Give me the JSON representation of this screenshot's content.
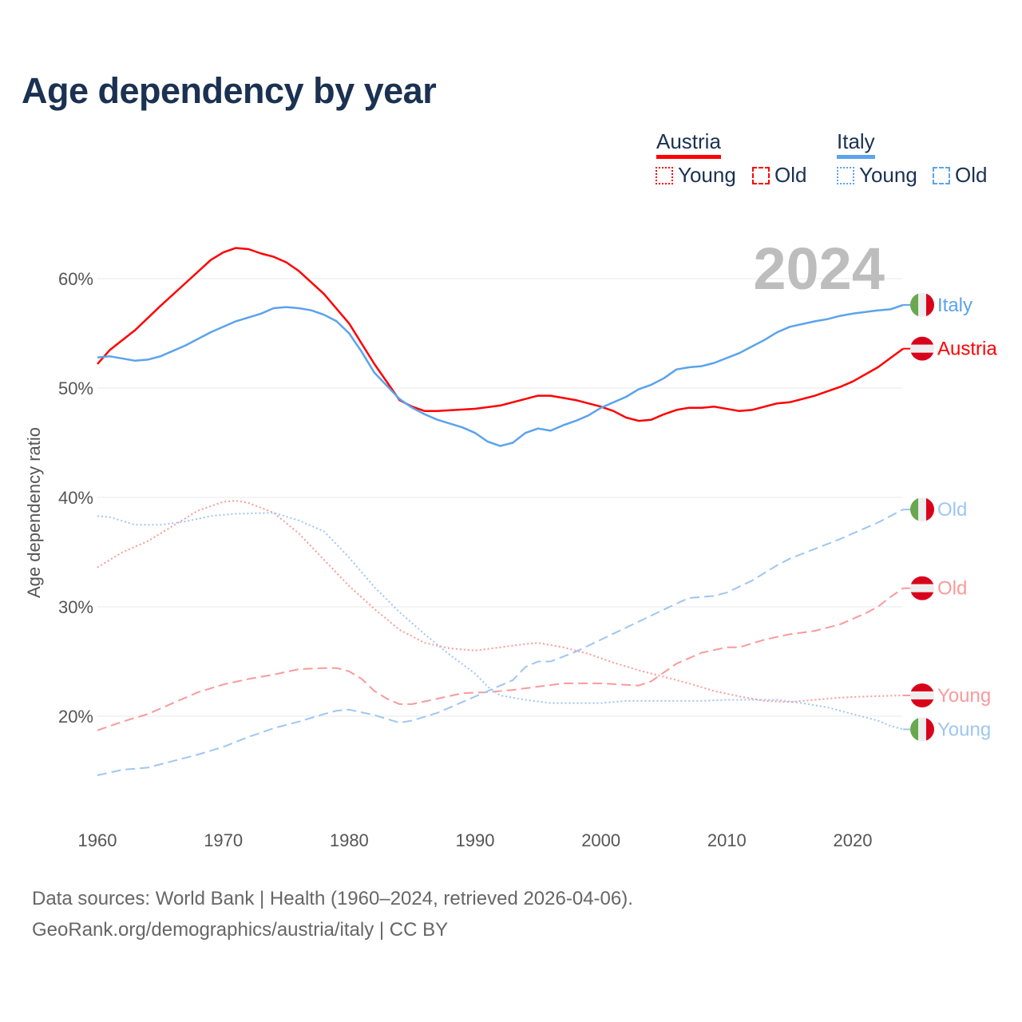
{
  "title": "Age dependency by year",
  "legend": {
    "groups": [
      {
        "name": "Austria",
        "color": "#ff0000",
        "items": [
          "Young",
          "Old"
        ]
      },
      {
        "name": "Italy",
        "color": "#5ba3ec",
        "items": [
          "Young",
          "Old"
        ]
      }
    ]
  },
  "source": {
    "line1": "Data sources: World Bank | Health (1960–2024, retrieved 2026-04-06).",
    "line2": "GeoRank.org/demographics/austria/italy | CC BY"
  },
  "chart_data": {
    "type": "line",
    "title": "Age dependency by year",
    "ylabel": "Age dependency ratio",
    "xlabel": "",
    "xlim": [
      1960,
      2024
    ],
    "ylim": [
      10,
      65
    ],
    "xticks": [
      "1960",
      "1970",
      "1980",
      "1990",
      "2000",
      "2010",
      "2020"
    ],
    "yticks": [
      "20%",
      "30%",
      "40%",
      "50%",
      "60%"
    ],
    "grid": true,
    "year_label": "2024",
    "series": [
      {
        "name": "Austria",
        "label": "Austria",
        "style": "solid",
        "color": "#ff0000",
        "flag": "austria",
        "points": [
          [
            1960,
            52.2
          ],
          [
            1961,
            53.5
          ],
          [
            1963,
            55.3
          ],
          [
            1965,
            57.5
          ],
          [
            1967,
            59.6
          ],
          [
            1969,
            61.7
          ],
          [
            1970,
            62.4
          ],
          [
            1971,
            62.8
          ],
          [
            1972,
            62.7
          ],
          [
            1973,
            62.3
          ],
          [
            1974,
            62.0
          ],
          [
            1975,
            61.5
          ],
          [
            1976,
            60.7
          ],
          [
            1978,
            58.6
          ],
          [
            1980,
            55.9
          ],
          [
            1982,
            52.2
          ],
          [
            1984,
            48.9
          ],
          [
            1985,
            48.3
          ],
          [
            1986,
            47.9
          ],
          [
            1987,
            47.9
          ],
          [
            1990,
            48.1
          ],
          [
            1992,
            48.4
          ],
          [
            1994,
            49.0
          ],
          [
            1995,
            49.3
          ],
          [
            1996,
            49.3
          ],
          [
            1998,
            48.9
          ],
          [
            2000,
            48.3
          ],
          [
            2001,
            47.9
          ],
          [
            2002,
            47.3
          ],
          [
            2003,
            47.0
          ],
          [
            2004,
            47.1
          ],
          [
            2005,
            47.6
          ],
          [
            2006,
            48.0
          ],
          [
            2007,
            48.2
          ],
          [
            2008,
            48.2
          ],
          [
            2009,
            48.3
          ],
          [
            2011,
            47.9
          ],
          [
            2012,
            48.0
          ],
          [
            2014,
            48.6
          ],
          [
            2015,
            48.7
          ],
          [
            2017,
            49.3
          ],
          [
            2019,
            50.1
          ],
          [
            2020,
            50.6
          ],
          [
            2022,
            51.9
          ],
          [
            2024,
            53.6
          ]
        ]
      },
      {
        "name": "Italy",
        "label": "Italy",
        "style": "solid",
        "color": "#5ba3ec",
        "flag": "italy",
        "points": [
          [
            1960,
            52.8
          ],
          [
            1961,
            52.9
          ],
          [
            1963,
            52.5
          ],
          [
            1964,
            52.6
          ],
          [
            1965,
            52.9
          ],
          [
            1967,
            53.9
          ],
          [
            1969,
            55.1
          ],
          [
            1971,
            56.1
          ],
          [
            1973,
            56.8
          ],
          [
            1974,
            57.3
          ],
          [
            1975,
            57.4
          ],
          [
            1976,
            57.3
          ],
          [
            1977,
            57.1
          ],
          [
            1978,
            56.7
          ],
          [
            1979,
            56.1
          ],
          [
            1980,
            55.0
          ],
          [
            1981,
            53.3
          ],
          [
            1982,
            51.4
          ],
          [
            1984,
            49.0
          ],
          [
            1985,
            48.2
          ],
          [
            1986,
            47.6
          ],
          [
            1987,
            47.1
          ],
          [
            1989,
            46.4
          ],
          [
            1990,
            45.9
          ],
          [
            1991,
            45.1
          ],
          [
            1992,
            44.7
          ],
          [
            1993,
            45.0
          ],
          [
            1994,
            45.9
          ],
          [
            1995,
            46.3
          ],
          [
            1996,
            46.1
          ],
          [
            1997,
            46.6
          ],
          [
            1998,
            47.0
          ],
          [
            1999,
            47.5
          ],
          [
            2000,
            48.2
          ],
          [
            2002,
            49.2
          ],
          [
            2003,
            49.9
          ],
          [
            2004,
            50.3
          ],
          [
            2005,
            50.9
          ],
          [
            2006,
            51.7
          ],
          [
            2007,
            51.9
          ],
          [
            2008,
            52.0
          ],
          [
            2009,
            52.3
          ],
          [
            2011,
            53.2
          ],
          [
            2012,
            53.8
          ],
          [
            2013,
            54.4
          ],
          [
            2014,
            55.1
          ],
          [
            2015,
            55.6
          ],
          [
            2017,
            56.1
          ],
          [
            2018,
            56.3
          ],
          [
            2019,
            56.6
          ],
          [
            2020,
            56.8
          ],
          [
            2022,
            57.1
          ],
          [
            2023,
            57.2
          ],
          [
            2024,
            57.6
          ]
        ]
      },
      {
        "name": "Austria Young",
        "label": "Young",
        "style": "dotted",
        "color": "#f99a9a",
        "flag": "austria",
        "points": [
          [
            1960,
            33.6
          ],
          [
            1962,
            35.0
          ],
          [
            1964,
            36.0
          ],
          [
            1966,
            37.4
          ],
          [
            1968,
            38.8
          ],
          [
            1970,
            39.6
          ],
          [
            1971,
            39.7
          ],
          [
            1972,
            39.5
          ],
          [
            1974,
            38.6
          ],
          [
            1976,
            36.7
          ],
          [
            1978,
            34.3
          ],
          [
            1980,
            31.9
          ],
          [
            1982,
            29.8
          ],
          [
            1984,
            27.9
          ],
          [
            1986,
            26.7
          ],
          [
            1988,
            26.2
          ],
          [
            1990,
            26.0
          ],
          [
            1992,
            26.3
          ],
          [
            1994,
            26.6
          ],
          [
            1995,
            26.7
          ],
          [
            1997,
            26.3
          ],
          [
            1999,
            25.7
          ],
          [
            2001,
            24.9
          ],
          [
            2003,
            24.2
          ],
          [
            2005,
            23.6
          ],
          [
            2007,
            23.0
          ],
          [
            2009,
            22.3
          ],
          [
            2011,
            21.8
          ],
          [
            2013,
            21.4
          ],
          [
            2015,
            21.3
          ],
          [
            2017,
            21.5
          ],
          [
            2019,
            21.7
          ],
          [
            2021,
            21.8
          ],
          [
            2024,
            21.9
          ]
        ]
      },
      {
        "name": "Austria Old",
        "label": "Old",
        "style": "dashed",
        "color": "#f99a9a",
        "flag": "austria",
        "points": [
          [
            1960,
            18.7
          ],
          [
            1962,
            19.5
          ],
          [
            1964,
            20.2
          ],
          [
            1966,
            21.2
          ],
          [
            1968,
            22.2
          ],
          [
            1970,
            22.9
          ],
          [
            1972,
            23.4
          ],
          [
            1974,
            23.8
          ],
          [
            1976,
            24.3
          ],
          [
            1978,
            24.4
          ],
          [
            1979,
            24.4
          ],
          [
            1980,
            24.1
          ],
          [
            1981,
            23.4
          ],
          [
            1982,
            22.3
          ],
          [
            1983,
            21.6
          ],
          [
            1984,
            21.1
          ],
          [
            1985,
            21.1
          ],
          [
            1987,
            21.6
          ],
          [
            1989,
            22.1
          ],
          [
            1991,
            22.2
          ],
          [
            1993,
            22.4
          ],
          [
            1995,
            22.7
          ],
          [
            1997,
            23.0
          ],
          [
            2000,
            23.0
          ],
          [
            2003,
            22.8
          ],
          [
            2004,
            23.2
          ],
          [
            2005,
            24.0
          ],
          [
            2006,
            24.8
          ],
          [
            2008,
            25.8
          ],
          [
            2010,
            26.3
          ],
          [
            2011,
            26.3
          ],
          [
            2013,
            27.0
          ],
          [
            2015,
            27.5
          ],
          [
            2017,
            27.8
          ],
          [
            2019,
            28.4
          ],
          [
            2021,
            29.4
          ],
          [
            2022,
            30.0
          ],
          [
            2023,
            30.9
          ],
          [
            2024,
            31.7
          ]
        ]
      },
      {
        "name": "Italy Young",
        "label": "Young",
        "style": "dotted",
        "color": "#9fc6f2",
        "flag": "italy",
        "points": [
          [
            1960,
            38.3
          ],
          [
            1961,
            38.2
          ],
          [
            1963,
            37.5
          ],
          [
            1965,
            37.5
          ],
          [
            1967,
            37.8
          ],
          [
            1969,
            38.3
          ],
          [
            1971,
            38.5
          ],
          [
            1974,
            38.6
          ],
          [
            1976,
            37.9
          ],
          [
            1978,
            36.9
          ],
          [
            1980,
            34.5
          ],
          [
            1982,
            31.8
          ],
          [
            1984,
            29.5
          ],
          [
            1986,
            27.5
          ],
          [
            1988,
            25.6
          ],
          [
            1990,
            23.9
          ],
          [
            1991,
            22.7
          ],
          [
            1992,
            21.9
          ],
          [
            1994,
            21.5
          ],
          [
            1996,
            21.2
          ],
          [
            1998,
            21.2
          ],
          [
            2000,
            21.2
          ],
          [
            2002,
            21.4
          ],
          [
            2005,
            21.4
          ],
          [
            2008,
            21.4
          ],
          [
            2010,
            21.5
          ],
          [
            2014,
            21.5
          ],
          [
            2016,
            21.2
          ],
          [
            2018,
            20.8
          ],
          [
            2020,
            20.2
          ],
          [
            2022,
            19.6
          ],
          [
            2023,
            19.1
          ],
          [
            2024,
            18.8
          ]
        ]
      },
      {
        "name": "Italy Old",
        "label": "Old",
        "style": "dashed",
        "color": "#9fc6f2",
        "flag": "italy",
        "points": [
          [
            1960,
            14.6
          ],
          [
            1962,
            15.1
          ],
          [
            1964,
            15.3
          ],
          [
            1966,
            15.9
          ],
          [
            1968,
            16.5
          ],
          [
            1970,
            17.2
          ],
          [
            1972,
            18.1
          ],
          [
            1974,
            18.9
          ],
          [
            1976,
            19.5
          ],
          [
            1978,
            20.2
          ],
          [
            1979,
            20.5
          ],
          [
            1980,
            20.6
          ],
          [
            1982,
            20.1
          ],
          [
            1984,
            19.4
          ],
          [
            1985,
            19.6
          ],
          [
            1987,
            20.3
          ],
          [
            1989,
            21.3
          ],
          [
            1991,
            22.3
          ],
          [
            1993,
            23.3
          ],
          [
            1994,
            24.5
          ],
          [
            1995,
            25.0
          ],
          [
            1996,
            25.0
          ],
          [
            1998,
            25.9
          ],
          [
            2000,
            27.0
          ],
          [
            2002,
            28.1
          ],
          [
            2004,
            29.2
          ],
          [
            2006,
            30.3
          ],
          [
            2007,
            30.8
          ],
          [
            2009,
            31.0
          ],
          [
            2010,
            31.3
          ],
          [
            2012,
            32.4
          ],
          [
            2014,
            33.8
          ],
          [
            2015,
            34.4
          ],
          [
            2017,
            35.3
          ],
          [
            2019,
            36.2
          ],
          [
            2020,
            36.7
          ],
          [
            2022,
            37.7
          ],
          [
            2023,
            38.3
          ],
          [
            2024,
            38.9
          ]
        ]
      }
    ]
  }
}
